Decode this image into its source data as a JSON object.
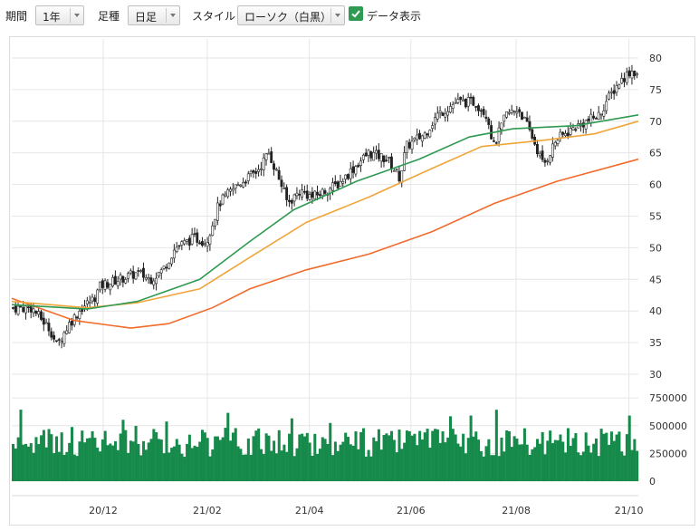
{
  "toolbar": {
    "period_label": "期間",
    "period_value": "1年",
    "bar_label": "足種",
    "bar_value": "日足",
    "style_label": "スタイル",
    "style_value": "ローソク（白黒）",
    "data_display_label": "データ表示",
    "data_display_checked": true
  },
  "chart_data": {
    "type": "candlestick",
    "x_ticks": [
      "20/12",
      "21/02",
      "21/04",
      "21/06",
      "21/08",
      "21/10"
    ],
    "price_ticks": [
      30,
      35,
      40,
      45,
      50,
      55,
      60,
      65,
      70,
      75,
      80
    ],
    "price_range": [
      28,
      83
    ],
    "volume_ticks": [
      0,
      250000,
      500000,
      750000
    ],
    "volume_range": [
      0,
      800000
    ],
    "price_close_approx": [
      [
        0,
        40.5
      ],
      [
        0.03,
        40.5
      ],
      [
        0.06,
        37
      ],
      [
        0.07,
        34.5
      ],
      [
        0.09,
        38
      ],
      [
        0.11,
        40.5
      ],
      [
        0.13,
        42
      ],
      [
        0.14,
        44
      ],
      [
        0.17,
        45
      ],
      [
        0.2,
        46
      ],
      [
        0.22,
        45
      ],
      [
        0.24,
        46.5
      ],
      [
        0.26,
        50
      ],
      [
        0.29,
        51.5
      ],
      [
        0.31,
        51
      ],
      [
        0.33,
        57
      ],
      [
        0.36,
        60
      ],
      [
        0.39,
        62
      ],
      [
        0.41,
        65
      ],
      [
        0.43,
        60
      ],
      [
        0.44,
        57
      ],
      [
        0.46,
        59
      ],
      [
        0.48,
        58
      ],
      [
        0.5,
        59
      ],
      [
        0.52,
        60
      ],
      [
        0.54,
        62
      ],
      [
        0.57,
        65
      ],
      [
        0.6,
        64
      ],
      [
        0.62,
        61
      ],
      [
        0.63,
        66
      ],
      [
        0.66,
        68
      ],
      [
        0.68,
        71
      ],
      [
        0.71,
        73
      ],
      [
        0.74,
        73
      ],
      [
        0.76,
        71
      ],
      [
        0.77,
        66
      ],
      [
        0.79,
        71
      ],
      [
        0.81,
        72
      ],
      [
        0.83,
        68
      ],
      [
        0.85,
        63
      ],
      [
        0.87,
        67
      ],
      [
        0.9,
        69
      ],
      [
        0.92,
        70
      ],
      [
        0.94,
        71
      ],
      [
        0.95,
        73
      ],
      [
        0.97,
        76
      ],
      [
        0.99,
        78
      ],
      [
        1.0,
        77.5
      ]
    ],
    "ma_short": {
      "color": "#2e9a52",
      "points": [
        [
          0,
          41
        ],
        [
          0.12,
          40.3
        ],
        [
          0.2,
          41.5
        ],
        [
          0.3,
          45
        ],
        [
          0.38,
          51
        ],
        [
          0.45,
          56
        ],
        [
          0.55,
          60.5
        ],
        [
          0.65,
          64
        ],
        [
          0.73,
          67.5
        ],
        [
          0.8,
          68.8
        ],
        [
          0.9,
          69.3
        ],
        [
          1.0,
          71
        ]
      ]
    },
    "ma_mid": {
      "color": "#f0a53a",
      "points": [
        [
          0,
          41.5
        ],
        [
          0.12,
          40.5
        ],
        [
          0.2,
          41.3
        ],
        [
          0.3,
          43.5
        ],
        [
          0.38,
          48.5
        ],
        [
          0.47,
          54
        ],
        [
          0.57,
          58
        ],
        [
          0.67,
          62.5
        ],
        [
          0.75,
          66
        ],
        [
          0.85,
          67
        ],
        [
          0.93,
          68
        ],
        [
          1.0,
          70
        ]
      ]
    },
    "ma_long": {
      "color": "#f26b2a",
      "points": [
        [
          0,
          42
        ],
        [
          0.1,
          38.5
        ],
        [
          0.19,
          37.3
        ],
        [
          0.25,
          38
        ],
        [
          0.32,
          40.5
        ],
        [
          0.38,
          43.5
        ],
        [
          0.47,
          46.5
        ],
        [
          0.57,
          49
        ],
        [
          0.67,
          52.5
        ],
        [
          0.77,
          57
        ],
        [
          0.87,
          60.5
        ],
        [
          1.0,
          64
        ]
      ]
    },
    "volume_color": "#168a4a",
    "candle_color": "#222222"
  }
}
